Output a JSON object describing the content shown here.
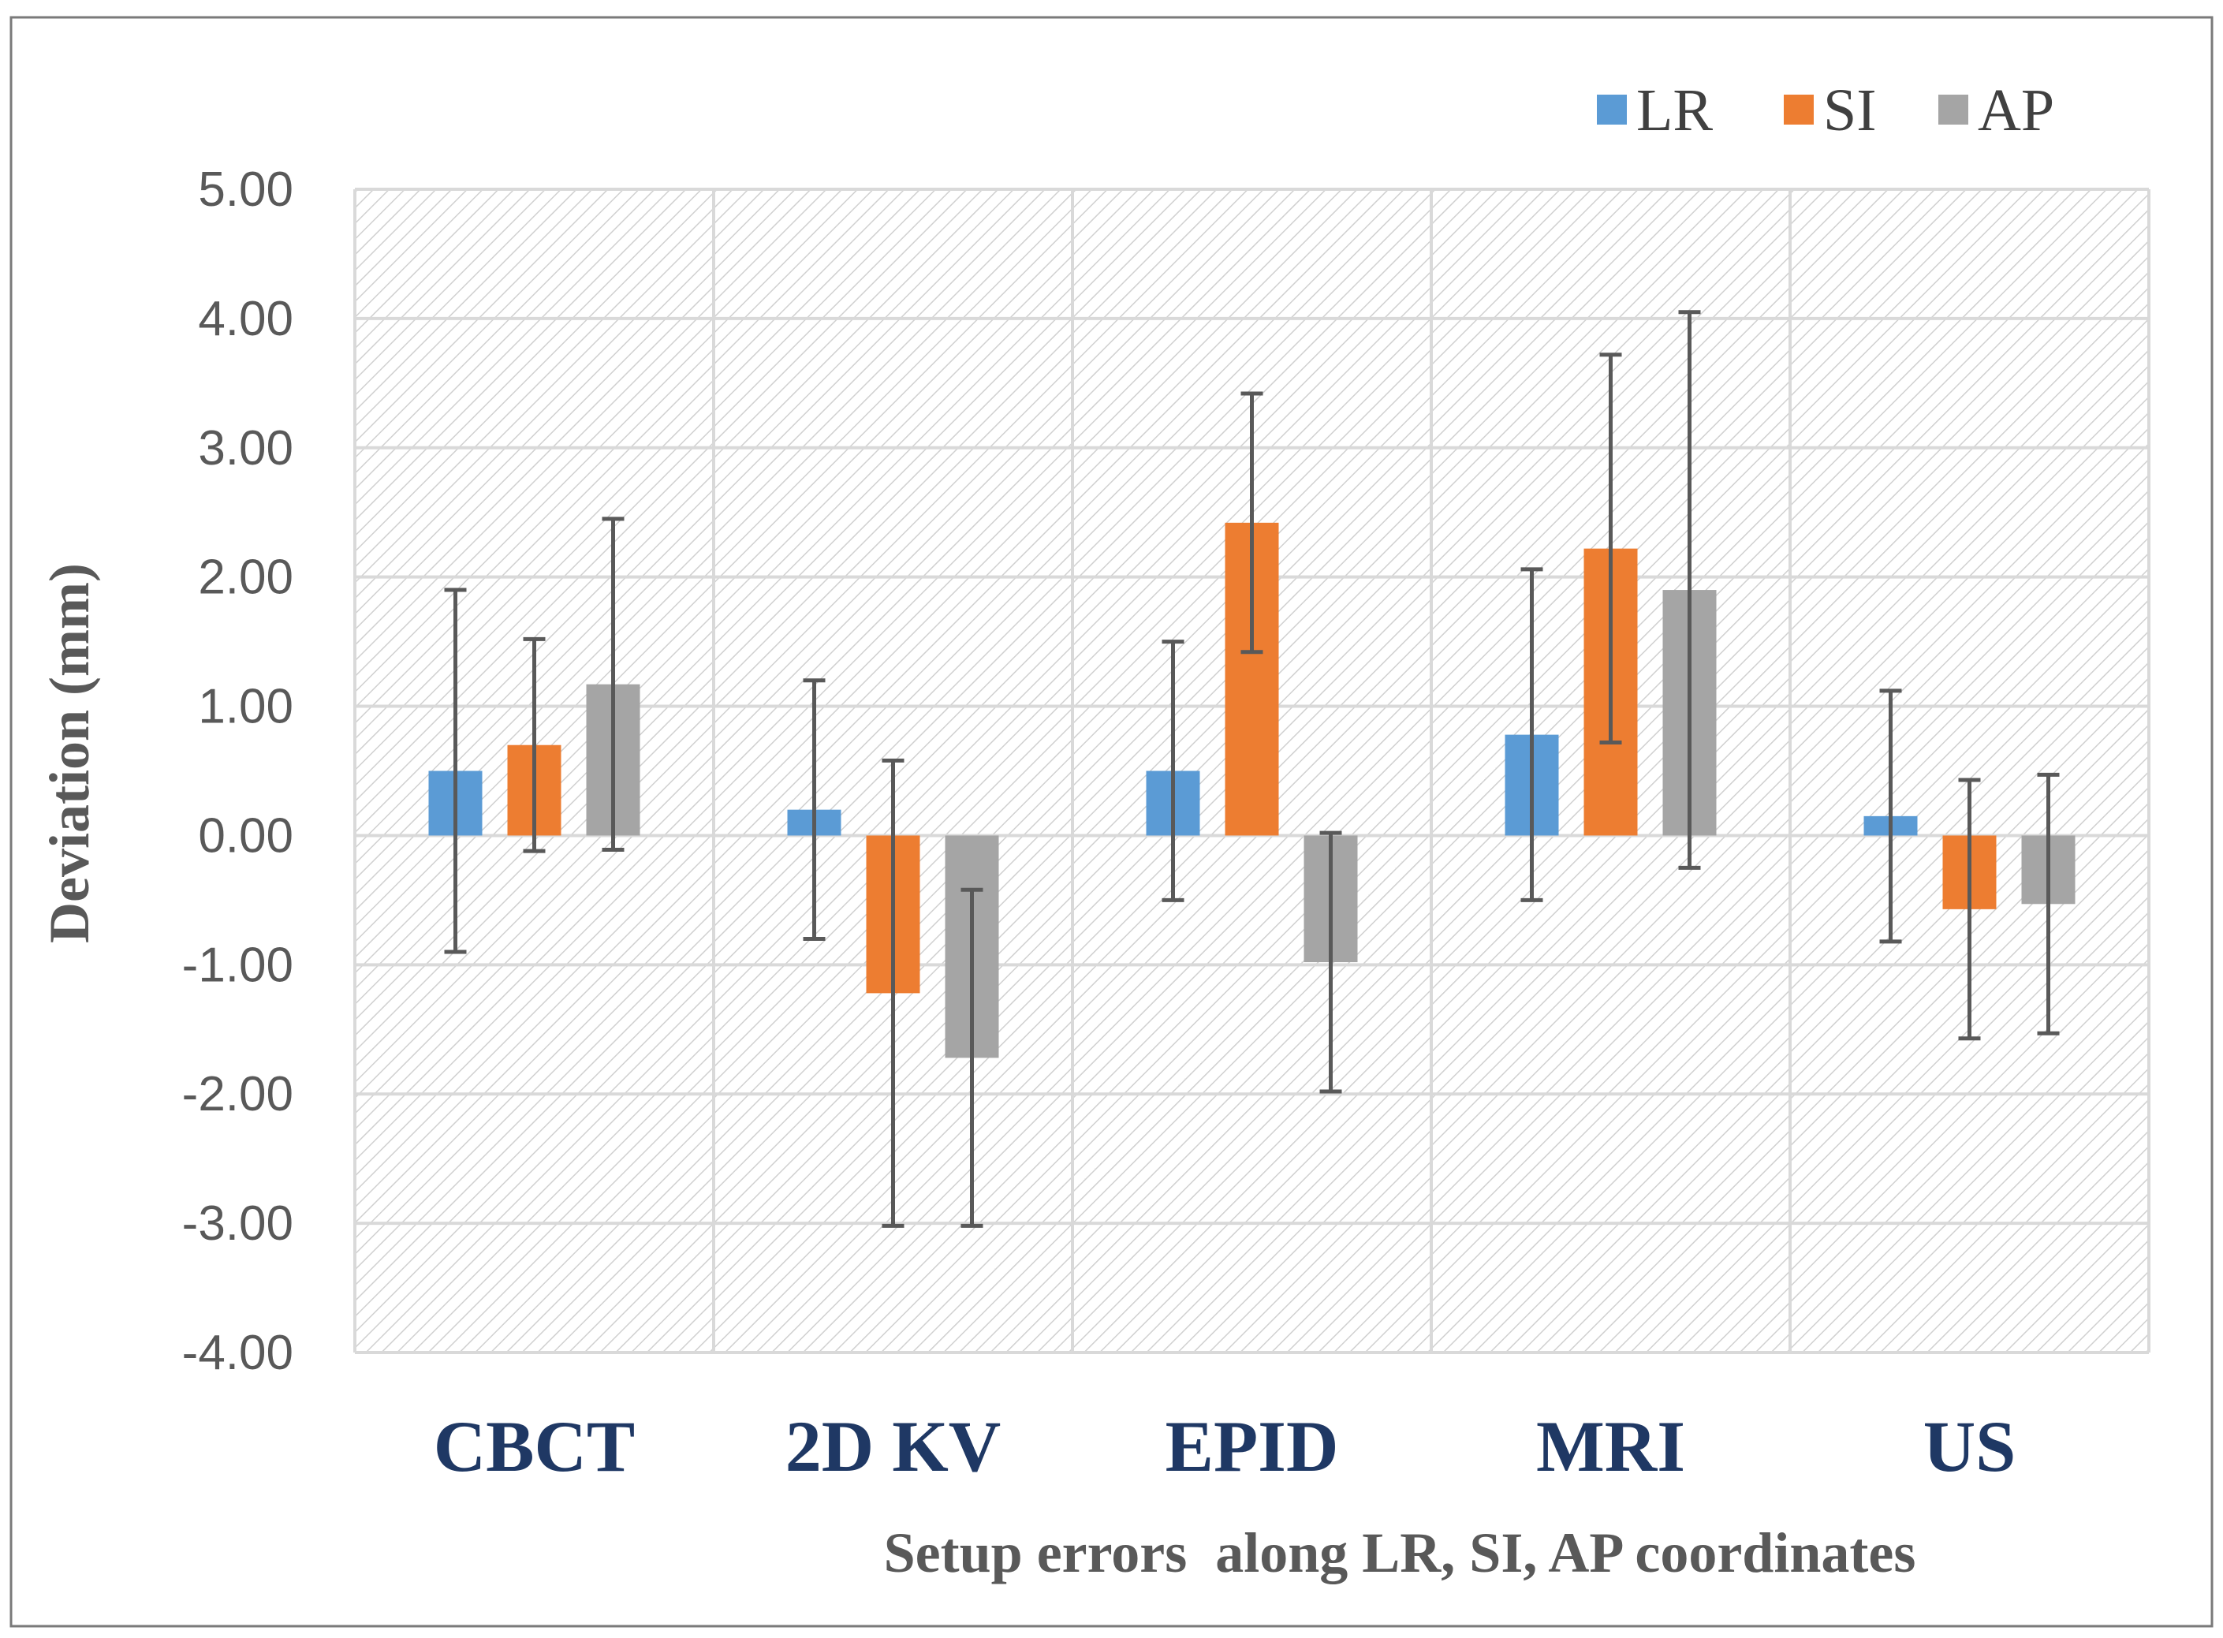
{
  "chart_data": {
    "type": "bar",
    "title": "",
    "xlabel": "Setup errors  along LR, SI, AP coordinates",
    "ylabel": "Deviation (mm)",
    "ylim": [
      -4,
      5
    ],
    "yticks": [
      "5.00",
      "4.00",
      "3.00",
      "2.00",
      "1.00",
      "0.00",
      "-1.00",
      "-2.00",
      "-3.00",
      "-4.00"
    ],
    "categories": [
      "CBCT",
      "2D KV",
      "EPID",
      "MRI",
      "US"
    ],
    "legend_position": "top-right",
    "grid": true,
    "series": [
      {
        "name": "LR",
        "color": "#5b9bd5",
        "values": [
          0.5,
          0.2,
          0.5,
          0.78,
          0.15
        ],
        "errors": [
          1.4,
          1.0,
          1.0,
          1.28,
          0.97
        ]
      },
      {
        "name": "SI",
        "color": "#ed7d31",
        "values": [
          0.7,
          -1.22,
          2.42,
          2.22,
          -0.57
        ],
        "errors": [
          0.82,
          1.8,
          1.0,
          1.5,
          1.0
        ]
      },
      {
        "name": "AP",
        "color": "#a5a5a5",
        "values": [
          1.17,
          -1.72,
          -0.98,
          1.9,
          -0.53
        ],
        "errors": [
          1.28,
          1.3,
          1.0,
          2.15,
          1.0
        ]
      }
    ]
  }
}
